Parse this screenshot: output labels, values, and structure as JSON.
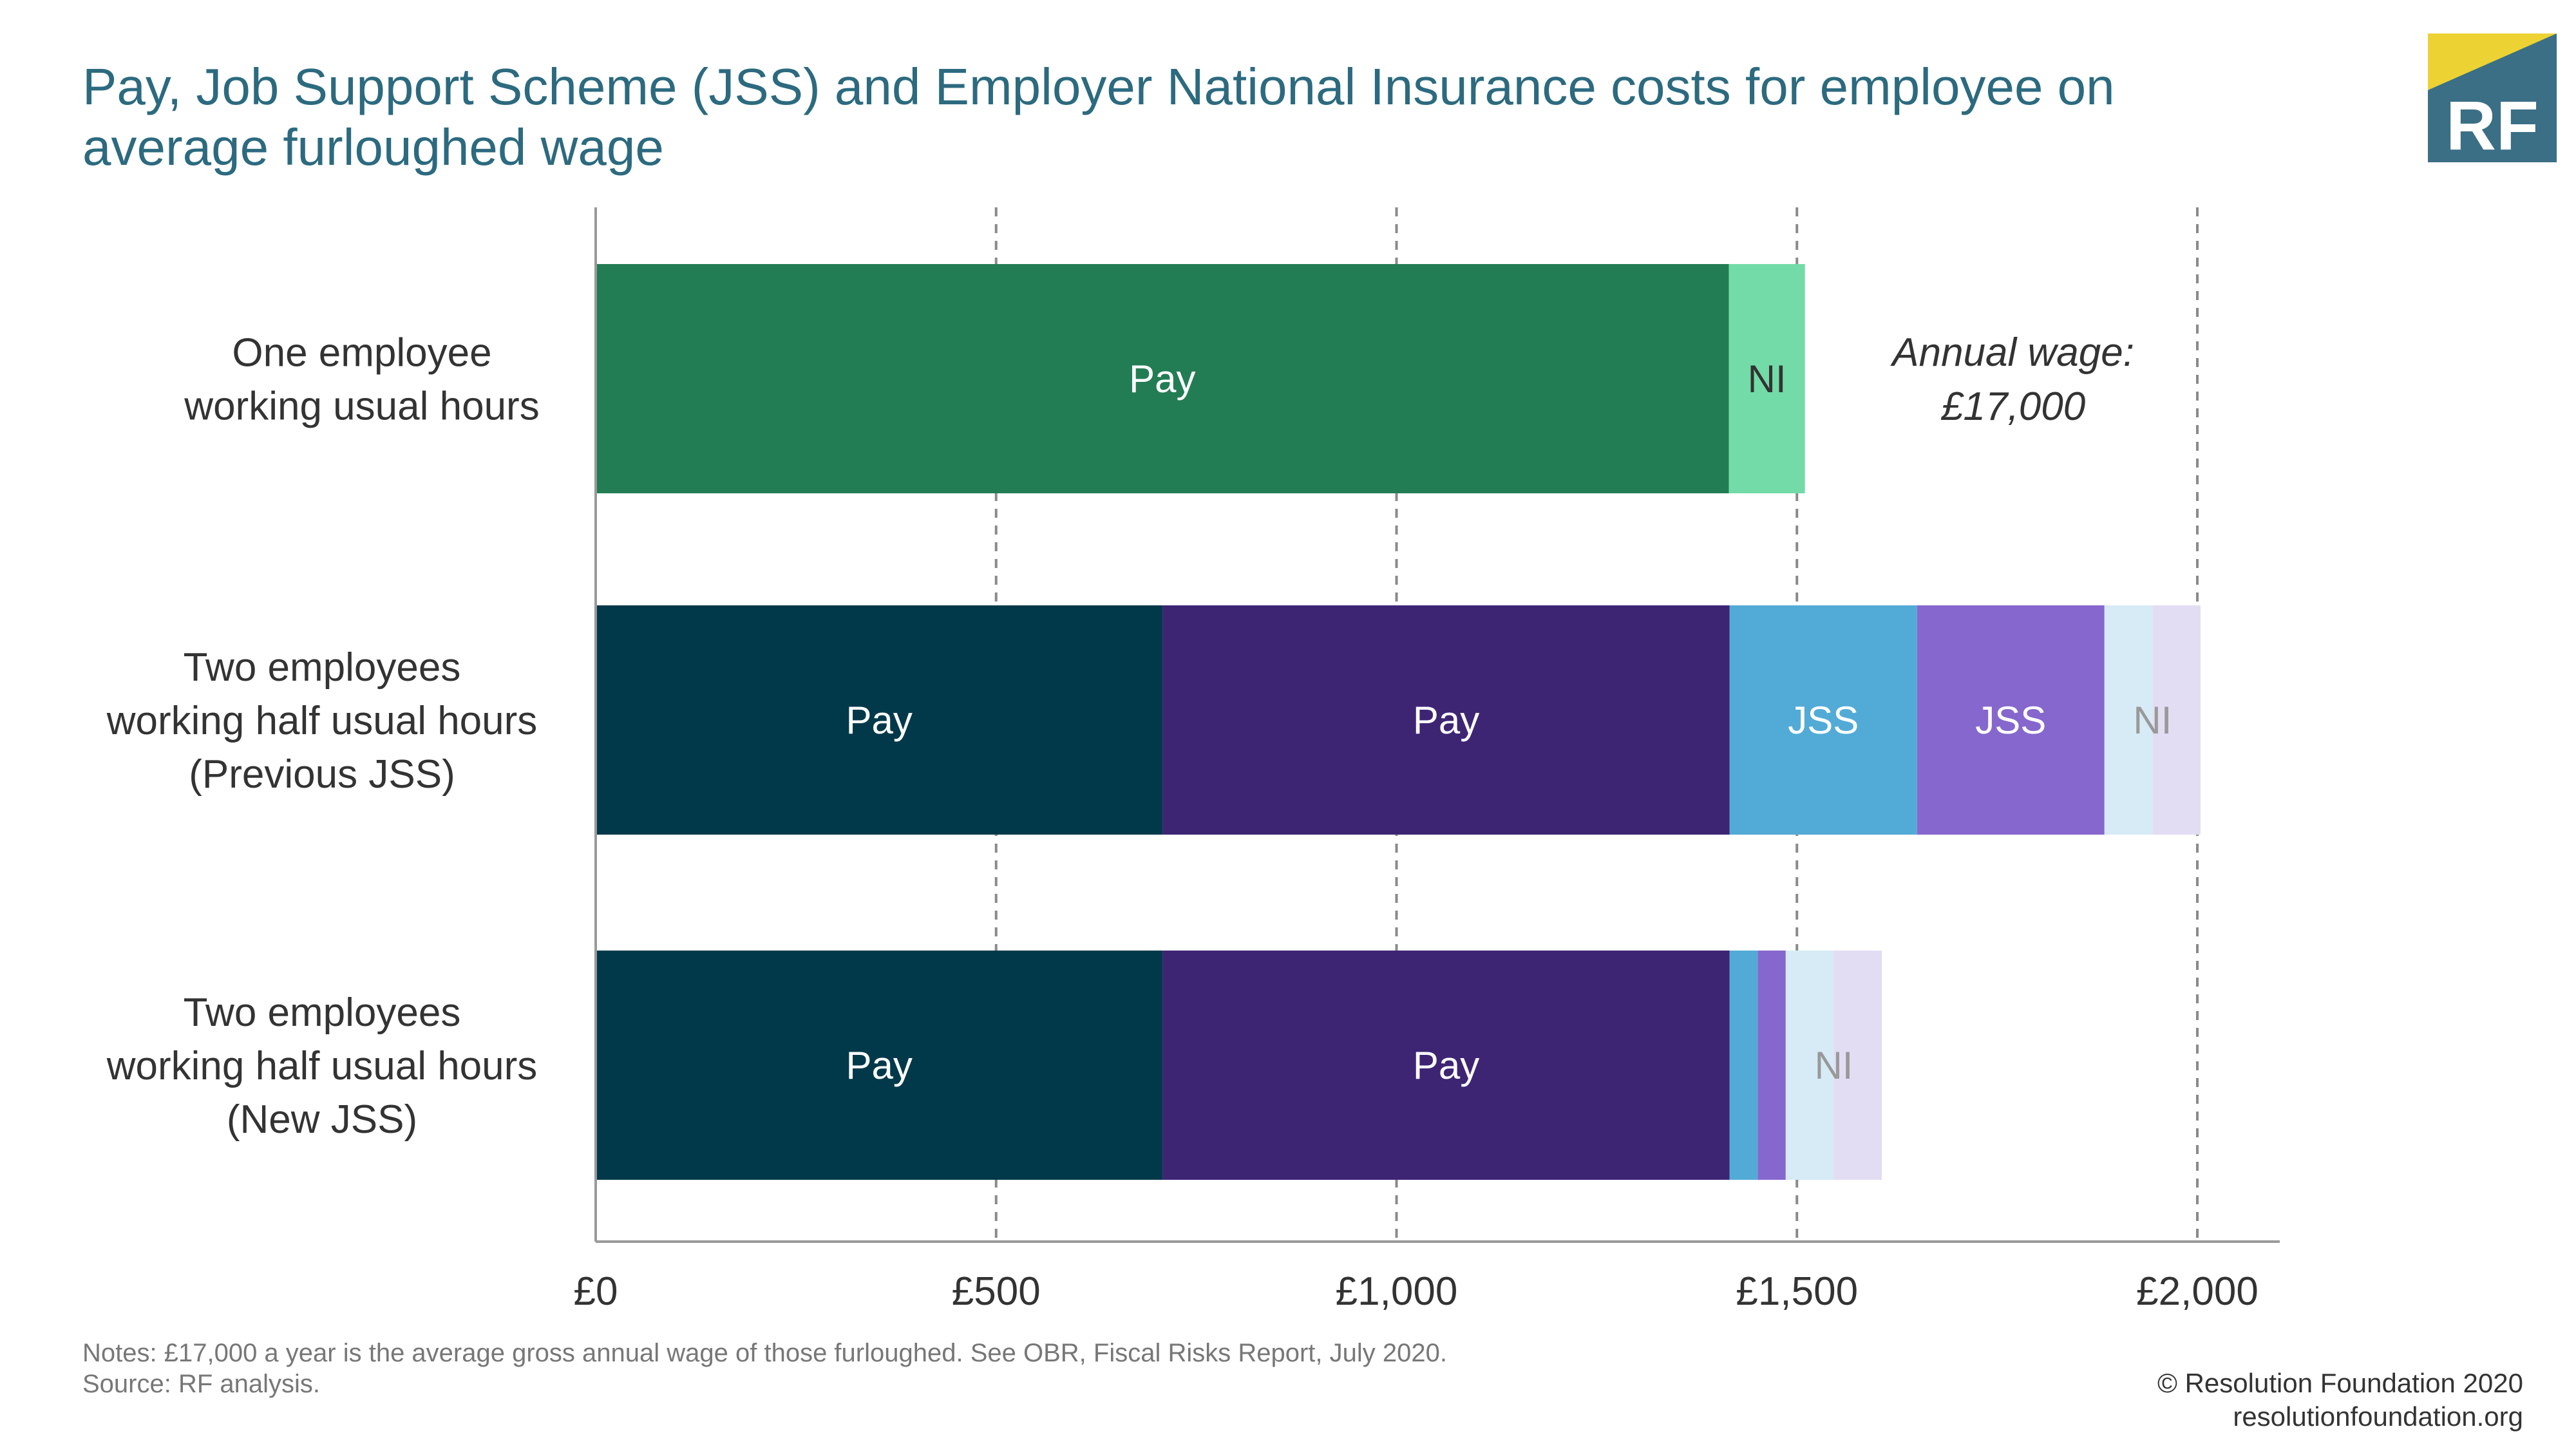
{
  "title_lines": [
    "Pay, Job Support Scheme (JSS) and Employer National Insurance costs for employee on",
    "average furloughed wage"
  ],
  "logo": {
    "text": "RF",
    "colors": {
      "teal": "#3a6f86",
      "yellow": "#ecd232"
    }
  },
  "chart_data": {
    "type": "bar",
    "orientation": "horizontal",
    "stacked": true,
    "title": "Pay, Job Support Scheme (JSS) and Employer National Insurance costs for employee on average furloughed wage",
    "xlabel": "",
    "ylabel": "",
    "xlim": [
      0,
      2100
    ],
    "grid": "vertical dashed",
    "categories": [
      [
        "One employee",
        "working usual hours"
      ],
      [
        "Two employees",
        "working half usual hours",
        "(Previous JSS)"
      ],
      [
        "Two employees",
        "working half usual hours",
        "(New JSS)"
      ]
    ],
    "bars": [
      {
        "segments": [
          {
            "series": "Pay",
            "value": 1415,
            "color": "#237d54",
            "label": "Pay",
            "label_color": "#ffffff"
          },
          {
            "series": "NI",
            "value": 95,
            "color": "#72dba8",
            "label": "NI",
            "label_color": "#333333"
          }
        ]
      },
      {
        "segments": [
          {
            "series": "Pay (employee 1)",
            "value": 708,
            "color": "#02394a",
            "label": "Pay",
            "label_color": "#ffffff"
          },
          {
            "series": "Pay (employee 2)",
            "value": 708,
            "color": "#3e2574",
            "label": "Pay",
            "label_color": "#ffffff"
          },
          {
            "series": "JSS (employee 1)",
            "value": 234,
            "color": "#52abd6",
            "label": "JSS",
            "label_color": "#ffffff"
          },
          {
            "series": "JSS (employee 2)",
            "value": 234,
            "color": "#8667cd",
            "label": "JSS",
            "label_color": "#ffffff"
          },
          {
            "series": "NI (employee 1)",
            "value": 60,
            "color": "#d6ebf5",
            "label": "",
            "label_color": "#999999"
          },
          {
            "series": "NI (employee 2)",
            "value": 60,
            "color": "#e3ddf3",
            "label": "",
            "label_color": "#999999"
          }
        ],
        "combined_label": {
          "text": "NI",
          "from_segment": 4,
          "to_segment": 5,
          "color": "#999999"
        }
      },
      {
        "segments": [
          {
            "series": "Pay (employee 1)",
            "value": 708,
            "color": "#02394a",
            "label": "Pay",
            "label_color": "#ffffff"
          },
          {
            "series": "Pay (employee 2)",
            "value": 708,
            "color": "#3e2574",
            "label": "Pay",
            "label_color": "#ffffff"
          },
          {
            "series": "JSS (employee 1)",
            "value": 35,
            "color": "#52abd6",
            "label": "",
            "label_color": "#ffffff"
          },
          {
            "series": "JSS (employee 2)",
            "value": 35,
            "color": "#8667cd",
            "label": "",
            "label_color": "#ffffff"
          },
          {
            "series": "NI (employee 1)",
            "value": 60,
            "color": "#d6ebf5",
            "label": "",
            "label_color": "#999999"
          },
          {
            "series": "NI (employee 2)",
            "value": 60,
            "color": "#e3ddf3",
            "label": "",
            "label_color": "#999999"
          }
        ],
        "combined_label": {
          "text": "NI",
          "from_segment": 4,
          "to_segment": 5,
          "color": "#999999"
        }
      }
    ],
    "x_ticks": [
      {
        "value": 0,
        "label": "£0"
      },
      {
        "value": 500,
        "label": "£500"
      },
      {
        "value": 1000,
        "label": "£1,000"
      },
      {
        "value": 1500,
        "label": "£1,500"
      },
      {
        "value": 2000,
        "label": "£2,000"
      }
    ],
    "annotation": {
      "lines": [
        "Annual wage:",
        "£17,000"
      ],
      "anchor_value": 1750,
      "bar_index": 0
    }
  },
  "notes": {
    "line1": "Notes: £17,000 a year is the average gross annual wage of those furloughed. See OBR, Fiscal Risks Report, July 2020.",
    "line2": "Source: RF analysis."
  },
  "footer": {
    "copyright": "© Resolution Foundation 2020",
    "website": "resolutionfoundation.org"
  }
}
